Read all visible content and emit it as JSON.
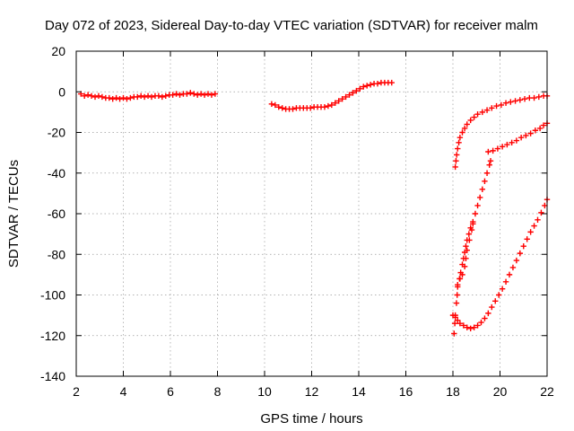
{
  "chart_data": {
    "type": "scatter",
    "title": "Day 072 of 2023, Sidereal Day-to-day VTEC variation (SDTVAR) for receiver malm",
    "xlabel": "GPS time / hours",
    "ylabel": "SDTVAR / TECUs",
    "xlim": [
      2,
      22
    ],
    "ylim": [
      -140,
      20
    ],
    "xticks": [
      2,
      4,
      6,
      8,
      10,
      12,
      14,
      16,
      18,
      20,
      22
    ],
    "yticks": [
      -140,
      -120,
      -100,
      -80,
      -60,
      -40,
      -20,
      0,
      20
    ],
    "grid": true,
    "marker": "plus",
    "color": "#ff0000",
    "series": [
      {
        "points": [
          [
            2.2,
            -1
          ],
          [
            2.35,
            -2
          ],
          [
            2.5,
            -1.5
          ],
          [
            2.65,
            -2
          ],
          [
            2.8,
            -2.5
          ],
          [
            2.95,
            -2
          ],
          [
            3.1,
            -2.5
          ],
          [
            3.25,
            -3
          ],
          [
            3.4,
            -3
          ],
          [
            3.55,
            -3.5
          ],
          [
            3.7,
            -3
          ],
          [
            3.85,
            -3.5
          ],
          [
            4.0,
            -3
          ],
          [
            4.15,
            -3.5
          ],
          [
            4.3,
            -3
          ],
          [
            4.45,
            -2.5
          ],
          [
            4.6,
            -2.5
          ],
          [
            4.75,
            -2
          ],
          [
            4.9,
            -2.5
          ],
          [
            5.05,
            -2
          ],
          [
            5.2,
            -2.5
          ],
          [
            5.35,
            -2
          ],
          [
            5.5,
            -2
          ],
          [
            5.65,
            -2.5
          ],
          [
            5.8,
            -2
          ],
          [
            5.95,
            -1.5
          ],
          [
            6.1,
            -1.5
          ],
          [
            6.25,
            -1
          ],
          [
            6.4,
            -1.5
          ],
          [
            6.55,
            -1
          ],
          [
            6.7,
            -1
          ],
          [
            6.85,
            -0.5
          ],
          [
            7.0,
            -1
          ],
          [
            7.15,
            -1.5
          ],
          [
            7.3,
            -1
          ],
          [
            7.45,
            -1.5
          ],
          [
            7.6,
            -1
          ],
          [
            7.75,
            -1.5
          ],
          [
            7.9,
            -1
          ]
        ]
      },
      {
        "points": [
          [
            10.3,
            -6
          ],
          [
            10.45,
            -6.5
          ],
          [
            10.6,
            -7.5
          ],
          [
            10.75,
            -8
          ],
          [
            10.9,
            -8.5
          ],
          [
            11.05,
            -8.5
          ],
          [
            11.2,
            -8.5
          ],
          [
            11.35,
            -8
          ],
          [
            11.5,
            -8
          ],
          [
            11.65,
            -8
          ],
          [
            11.8,
            -8
          ],
          [
            11.95,
            -8
          ],
          [
            12.1,
            -7.5
          ],
          [
            12.25,
            -7.5
          ],
          [
            12.4,
            -7.5
          ],
          [
            12.55,
            -7.5
          ],
          [
            12.7,
            -7
          ],
          [
            12.85,
            -6.5
          ],
          [
            13.0,
            -5.5
          ],
          [
            13.15,
            -4.5
          ],
          [
            13.3,
            -3.5
          ],
          [
            13.45,
            -2.5
          ],
          [
            13.6,
            -1.5
          ],
          [
            13.75,
            -0.5
          ],
          [
            13.9,
            0.5
          ],
          [
            14.05,
            1.5
          ],
          [
            14.2,
            2.5
          ],
          [
            14.35,
            3
          ],
          [
            14.5,
            3.5
          ],
          [
            14.65,
            4
          ],
          [
            14.8,
            4
          ],
          [
            14.95,
            4.5
          ],
          [
            15.1,
            4.5
          ],
          [
            15.25,
            4.5
          ],
          [
            15.4,
            4.5
          ]
        ]
      },
      {
        "points": [
          [
            18.1,
            -37
          ],
          [
            18.13,
            -34
          ],
          [
            18.16,
            -31
          ],
          [
            18.2,
            -28
          ],
          [
            18.25,
            -25
          ],
          [
            18.3,
            -22.5
          ],
          [
            18.4,
            -20
          ],
          [
            18.5,
            -18
          ],
          [
            18.6,
            -16
          ],
          [
            18.75,
            -14
          ],
          [
            18.9,
            -12.5
          ],
          [
            19.05,
            -11
          ],
          [
            19.25,
            -10
          ],
          [
            19.45,
            -9
          ],
          [
            19.65,
            -8
          ],
          [
            19.85,
            -7
          ],
          [
            20.05,
            -6.5
          ],
          [
            20.25,
            -5.5
          ],
          [
            20.45,
            -5
          ],
          [
            20.65,
            -4.5
          ],
          [
            20.85,
            -4
          ],
          [
            21.05,
            -3.5
          ],
          [
            21.25,
            -3
          ],
          [
            21.45,
            -3
          ],
          [
            21.65,
            -2.5
          ],
          [
            21.85,
            -2
          ],
          [
            22.0,
            -2
          ]
        ]
      },
      {
        "points": [
          [
            19.5,
            -29.5
          ],
          [
            19.7,
            -29
          ],
          [
            19.9,
            -28
          ],
          [
            20.1,
            -27
          ],
          [
            20.3,
            -26
          ],
          [
            20.5,
            -25
          ],
          [
            20.7,
            -24
          ],
          [
            20.9,
            -22.5
          ],
          [
            21.1,
            -21.5
          ],
          [
            21.3,
            -20.5
          ],
          [
            21.5,
            -19
          ],
          [
            21.7,
            -18
          ],
          [
            21.85,
            -16.5
          ],
          [
            22.0,
            -15.5
          ]
        ]
      },
      {
        "points": [
          [
            18.05,
            -119
          ],
          [
            18.08,
            -114
          ],
          [
            18.1,
            -110
          ],
          [
            18.15,
            -104
          ],
          [
            18.18,
            -100
          ],
          [
            18.2,
            -96
          ],
          [
            18.28,
            -92
          ],
          [
            18.33,
            -89
          ],
          [
            18.4,
            -85
          ],
          [
            18.45,
            -82
          ],
          [
            18.5,
            -79
          ],
          [
            18.55,
            -76
          ],
          [
            18.6,
            -73
          ],
          [
            18.68,
            -70
          ],
          [
            18.75,
            -67
          ],
          [
            18.85,
            -64
          ],
          [
            18.95,
            -60
          ],
          [
            19.05,
            -56
          ],
          [
            19.15,
            -52
          ],
          [
            19.25,
            -48
          ],
          [
            19.35,
            -44
          ],
          [
            19.45,
            -40
          ],
          [
            19.55,
            -36
          ],
          [
            19.6,
            -34
          ]
        ]
      },
      {
        "points": [
          [
            18.2,
            -95
          ],
          [
            18.3,
            -92
          ],
          [
            18.4,
            -90
          ],
          [
            18.5,
            -86
          ],
          [
            18.55,
            -82
          ],
          [
            18.6,
            -78
          ],
          [
            18.7,
            -73
          ],
          [
            18.8,
            -68
          ],
          [
            18.85,
            -65
          ]
        ]
      },
      {
        "points": [
          [
            18.0,
            -110
          ],
          [
            18.1,
            -111
          ],
          [
            18.2,
            -112.5
          ],
          [
            18.3,
            -114
          ],
          [
            18.45,
            -115
          ],
          [
            18.6,
            -116
          ],
          [
            18.75,
            -116.5
          ],
          [
            18.9,
            -116
          ],
          [
            19.05,
            -115
          ],
          [
            19.2,
            -113.5
          ],
          [
            19.35,
            -111.5
          ],
          [
            19.5,
            -109
          ],
          [
            19.65,
            -106
          ],
          [
            19.8,
            -103
          ],
          [
            19.95,
            -100
          ],
          [
            20.1,
            -97
          ],
          [
            20.25,
            -93.5
          ],
          [
            20.4,
            -90
          ],
          [
            20.55,
            -86.5
          ],
          [
            20.7,
            -83
          ],
          [
            20.85,
            -79.5
          ],
          [
            21.0,
            -76
          ],
          [
            21.15,
            -72.5
          ],
          [
            21.3,
            -69
          ],
          [
            21.45,
            -66
          ],
          [
            21.6,
            -63
          ],
          [
            21.75,
            -59.5
          ],
          [
            21.9,
            -56
          ],
          [
            22.0,
            -53
          ]
        ]
      }
    ]
  }
}
